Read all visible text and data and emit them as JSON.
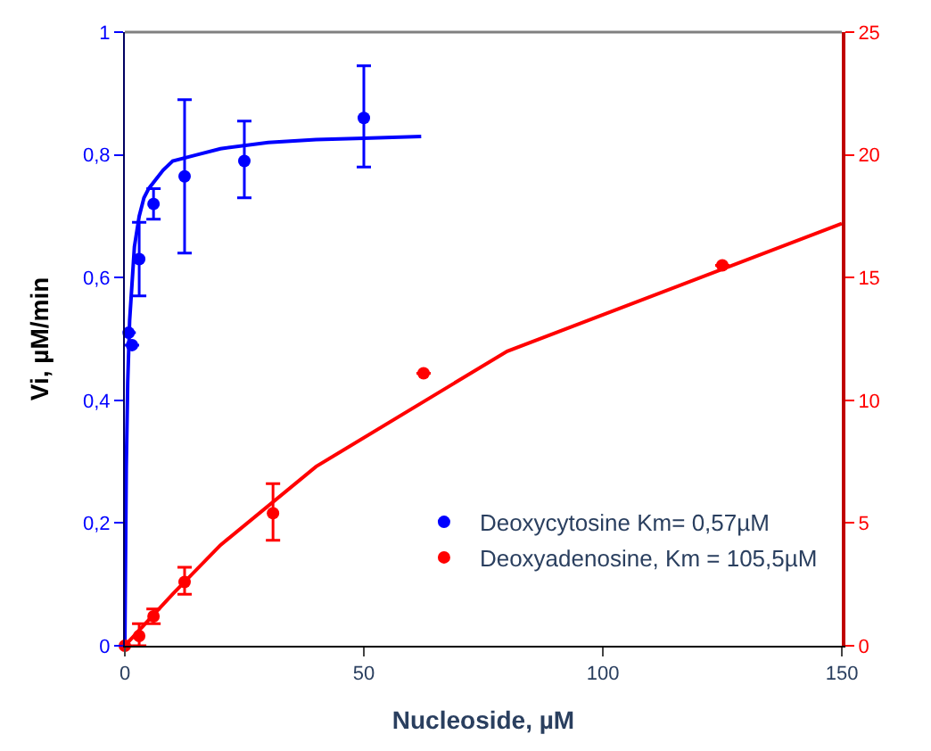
{
  "chart_data": {
    "type": "scatter",
    "xlabel": "Nucleoside, µM",
    "ylabel": "Vi, µM/min",
    "xlim": [
      0,
      150
    ],
    "xticks": [
      0,
      50,
      100,
      150
    ],
    "ylim": [
      0,
      1
    ],
    "yticks": [
      0,
      {
        "value": 0.2,
        "label": "0,2"
      },
      {
        "value": 0.4,
        "label": "0,4"
      },
      {
        "value": 0.6,
        "label": "0,6"
      },
      {
        "value": 0.8,
        "label": "0,8"
      },
      1
    ],
    "y2lim": [
      0,
      25
    ],
    "y2ticks": [
      0,
      5,
      10,
      15,
      20,
      25
    ],
    "legend": "bottom right",
    "marker": "circle",
    "series": [
      {
        "name": "Deoxycytosine Km= 0,57µM",
        "color": "#0000ff",
        "x": [
          0.8,
          1.5,
          3,
          6,
          12.5,
          25,
          50
        ],
        "values": [
          0.51,
          0.49,
          0.63,
          0.72,
          0.765,
          0.79,
          0.86
        ],
        "errors": [
          null,
          null,
          [
            0.57,
            0.69
          ],
          [
            0.695,
            0.745
          ],
          [
            0.64,
            0.89
          ],
          [
            0.73,
            0.855
          ],
          [
            0.78,
            0.945
          ]
        ]
      },
      {
        "name": "Deoxyadenosine, Km = 105,5µM",
        "color": "#ff0000",
        "axis": "y2",
        "x": [
          0,
          3,
          6,
          12.5,
          31,
          62.5,
          125
        ],
        "values": [
          0,
          0.4,
          1.2,
          2.6,
          5.4,
          11.1,
          15.5
        ],
        "errors": [
          null,
          [
            0,
            0.9
          ],
          [
            0.9,
            1.5
          ],
          [
            2.1,
            3.2
          ],
          [
            4.3,
            6.6
          ],
          null,
          null
        ]
      },
      {
        "type": "line",
        "marker": "none",
        "color": "#0000ff",
        "x": [
          0,
          0.3,
          0.6,
          1,
          2,
          3,
          4,
          5,
          8,
          10,
          15,
          20,
          30,
          40,
          50,
          62
        ],
        "values": [
          0,
          0.29,
          0.43,
          0.53,
          0.65,
          0.7,
          0.73,
          0.745,
          0.775,
          0.79,
          0.8,
          0.81,
          0.82,
          0.825,
          0.827,
          0.83
        ]
      },
      {
        "type": "line",
        "marker": "none",
        "color": "#ff0000",
        "axis": "y2",
        "x": [
          0,
          10,
          20,
          40,
          80,
          150
        ],
        "values": [
          0,
          2.1,
          4.1,
          7.3,
          12,
          17.2
        ]
      }
    ]
  }
}
